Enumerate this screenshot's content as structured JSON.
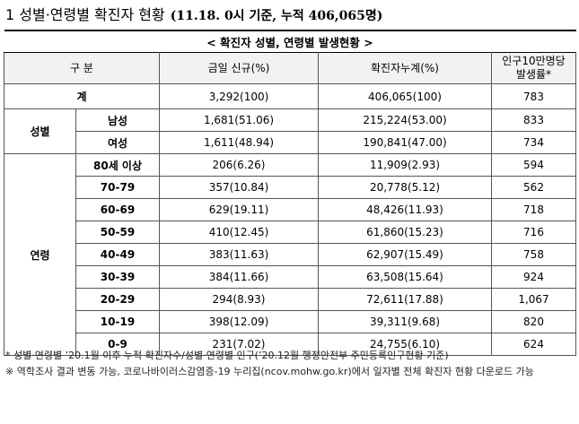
{
  "title": {
    "main": "1 성별·연령별 확진자 현황",
    "sub": "(11.18. 0시 기준, 누적 406,065명)"
  },
  "table": {
    "caption": "< 확진자 성별, 연령별 발생현황 >",
    "headers": {
      "category": "구 분",
      "new": "금일 신규(%)",
      "cumulative": "확진자누계(%)",
      "rate_line1": "인구10만명당",
      "rate_line2": "발생률*"
    },
    "total": {
      "label": "계",
      "new": "3,292(100)",
      "cumulative": "406,065(100)",
      "rate": "783"
    },
    "sex": {
      "group": "성별",
      "rows": [
        {
          "label": "남성",
          "new": "1,681(51.06)",
          "cumulative": "215,224(53.00)",
          "rate": "833"
        },
        {
          "label": "여성",
          "new": "1,611(48.94)",
          "cumulative": "190,841(47.00)",
          "rate": "734"
        }
      ]
    },
    "age": {
      "group": "연령",
      "rows": [
        {
          "label": "80세 이상",
          "new": "206(6.26)",
          "cumulative": "11,909(2.93)",
          "rate": "594"
        },
        {
          "label": "70-79",
          "new": "357(10.84)",
          "cumulative": "20,778(5.12)",
          "rate": "562"
        },
        {
          "label": "60-69",
          "new": "629(19.11)",
          "cumulative": "48,426(11.93)",
          "rate": "718"
        },
        {
          "label": "50-59",
          "new": "410(12.45)",
          "cumulative": "61,860(15.23)",
          "rate": "716"
        },
        {
          "label": "40-49",
          "new": "383(11.63)",
          "cumulative": "62,907(15.49)",
          "rate": "758"
        },
        {
          "label": "30-39",
          "new": "384(11.66)",
          "cumulative": "63,508(15.64)",
          "rate": "924"
        },
        {
          "label": "20-29",
          "new": "294(8.93)",
          "cumulative": "72,611(17.88)",
          "rate": "1,067"
        },
        {
          "label": "10-19",
          "new": "398(12.09)",
          "cumulative": "39,311(9.68)",
          "rate": "820"
        },
        {
          "label": "0-9",
          "new": "231(7.02)",
          "cumulative": "24,755(6.10)",
          "rate": "624"
        }
      ]
    }
  },
  "notes": {
    "note1": "* 성별·연령별 ’20.1월 이후 누적 확진자수/성별·연령별 인구(’20.12월 행정안전부 주민등록인구현황 기준)",
    "note2": "※ 역학조사 결과 변동 가능, 코로나바이러스감염증-19 누리집(ncov.mohw.go.kr)에서 일자별 전체 확진자 현황 다운로드 가능"
  },
  "colors": {
    "header_bg": "#f2f2f2",
    "border": "#555555",
    "rule": "#000000"
  }
}
